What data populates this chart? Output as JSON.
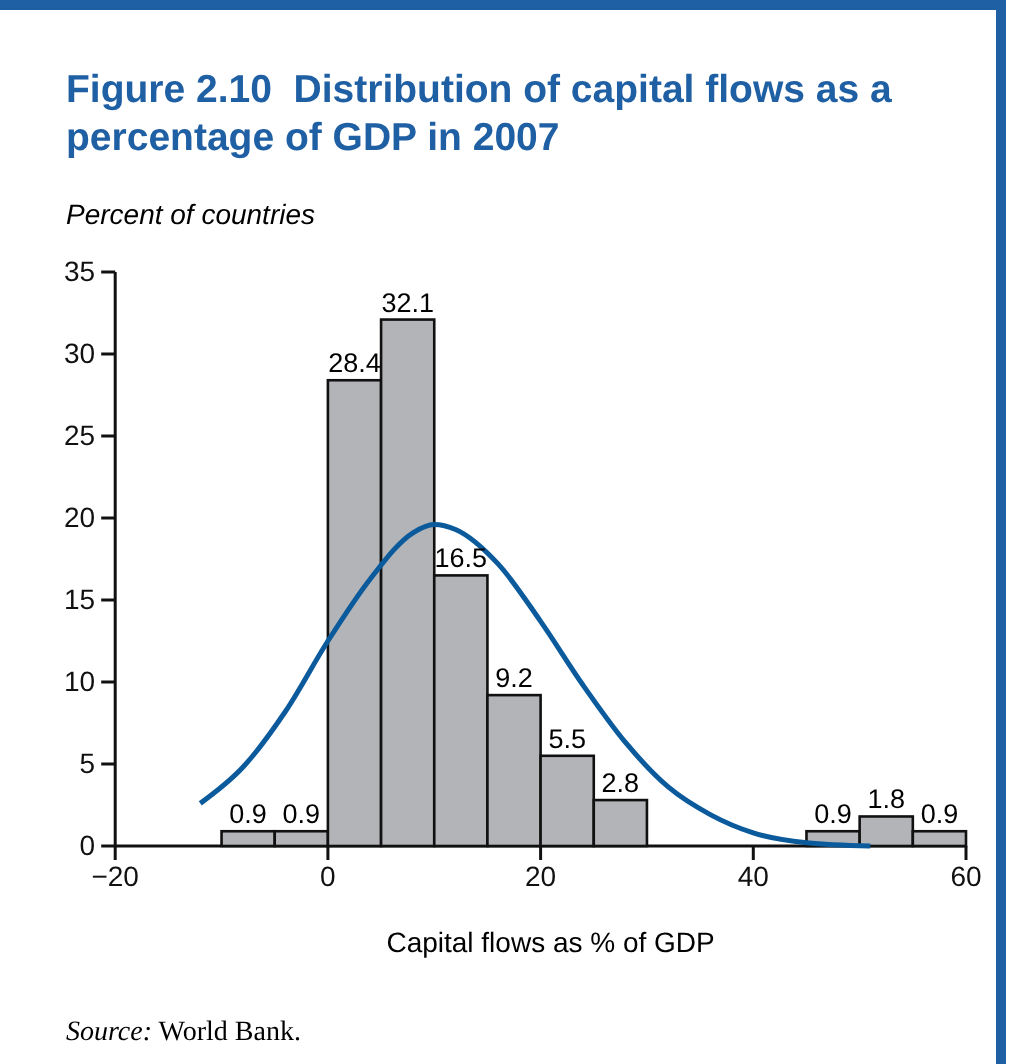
{
  "chart_data": {
    "type": "histogram",
    "title": "Figure 2.10  Distribution of capital flows as a percentage of GDP in 2007",
    "ylabel": "Percent of countries",
    "xlabel": "Capital flows as % of GDP",
    "annotations": [
      "Source: World Bank."
    ],
    "bins": [
      -10,
      -5,
      0,
      5,
      10,
      15,
      20,
      25,
      30,
      35,
      40,
      45,
      50,
      55,
      60
    ],
    "series": [
      {
        "color": "#b2b4b7",
        "values": [
          0.9,
          0.9,
          28.4,
          32.1,
          16.5,
          9.2,
          5.5,
          2.8,
          0,
          0,
          0,
          0.9,
          1.8,
          0.9
        ],
        "value_labels": [
          "0.9",
          "0.9",
          "28.4",
          "32.1",
          "16.5",
          "9.2",
          "5.5",
          "2.8",
          null,
          null,
          null,
          "0.9",
          "1.8",
          "0.9"
        ]
      },
      {
        "type": "line",
        "color": "#0b5a9c",
        "x": [
          -12,
          -8,
          -4,
          0,
          4,
          8,
          10,
          12,
          16,
          20,
          24,
          28,
          32,
          36,
          40,
          45,
          51
        ],
        "values": [
          2.6,
          4.8,
          8.2,
          12.5,
          16.3,
          19.1,
          19.6,
          19.3,
          17.2,
          13.7,
          9.8,
          6.3,
          3.6,
          1.9,
          0.8,
          0.2,
          0
        ]
      }
    ],
    "xlim": [
      -20,
      60
    ],
    "xticks": [
      -20,
      0,
      20,
      40,
      60
    ],
    "ylim": [
      0,
      35
    ],
    "yticks": [
      0,
      5,
      10,
      15,
      20,
      25,
      30,
      35
    ],
    "grid": false,
    "marker": "none",
    "line_style": "solid"
  }
}
